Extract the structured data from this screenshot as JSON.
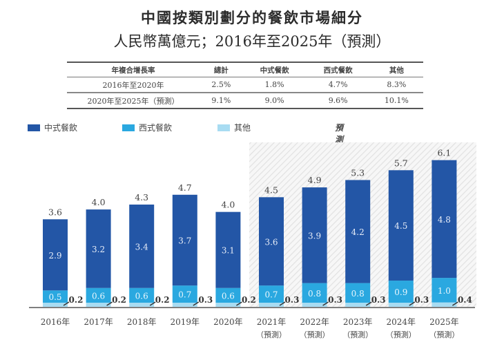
{
  "title": "中國按類別劃分的餐飲市場細分",
  "subtitle": "人民幣萬億元；2016年至2025年（預測）",
  "cagr_table": {
    "headers": [
      "年複合增長率",
      "總計",
      "中式餐飲",
      "西式餐飲",
      "其他"
    ],
    "rows": [
      [
        "2016年至2020年",
        "2.5%",
        "1.8%",
        "4.7%",
        "8.3%"
      ],
      [
        "2020年至2025年（預測）",
        "9.1%",
        "9.0%",
        "9.6%",
        "10.1%"
      ]
    ]
  },
  "legend": {
    "items": [
      {
        "label": "中式餐飲",
        "color": "#2356a6"
      },
      {
        "label": "西式餐飲",
        "color": "#2aa8e0"
      },
      {
        "label": "其他",
        "color": "#a8dcf2"
      }
    ],
    "forecast_label": "預測"
  },
  "chart_data": {
    "type": "bar",
    "stacked": true,
    "title": "中國按類別劃分的餐飲市場細分",
    "subtitle": "人民幣萬億元；2016年至2025年（預測）",
    "xlabel": "",
    "ylabel": "",
    "categories": [
      "2016年",
      "2017年",
      "2018年",
      "2019年",
      "2020年",
      "2021年",
      "2022年",
      "2023年",
      "2024年",
      "2025年"
    ],
    "category_sublabels": [
      "",
      "",
      "",
      "",
      "",
      "（預測）",
      "（預測）",
      "（預測）",
      "（預測）",
      "（預測）"
    ],
    "series": [
      {
        "name": "其他",
        "color": "#a8dcf2",
        "values": [
          0.2,
          0.2,
          0.2,
          0.3,
          0.2,
          0.3,
          0.3,
          0.3,
          0.3,
          0.4
        ]
      },
      {
        "name": "西式餐飲",
        "color": "#2aa8e0",
        "values": [
          0.5,
          0.6,
          0.6,
          0.7,
          0.6,
          0.7,
          0.8,
          0.8,
          0.9,
          1.0
        ]
      },
      {
        "name": "中式餐飲",
        "color": "#2356a6",
        "values": [
          2.9,
          3.2,
          3.4,
          3.7,
          3.1,
          3.6,
          3.9,
          4.2,
          4.5,
          4.8
        ]
      }
    ],
    "totals": [
      3.6,
      4.0,
      4.3,
      4.7,
      4.0,
      4.5,
      4.9,
      5.3,
      5.7,
      6.1
    ],
    "forecast_start_index": 5,
    "ylim": [
      0,
      6.1
    ],
    "grid": false,
    "legend_position": "top-left"
  }
}
